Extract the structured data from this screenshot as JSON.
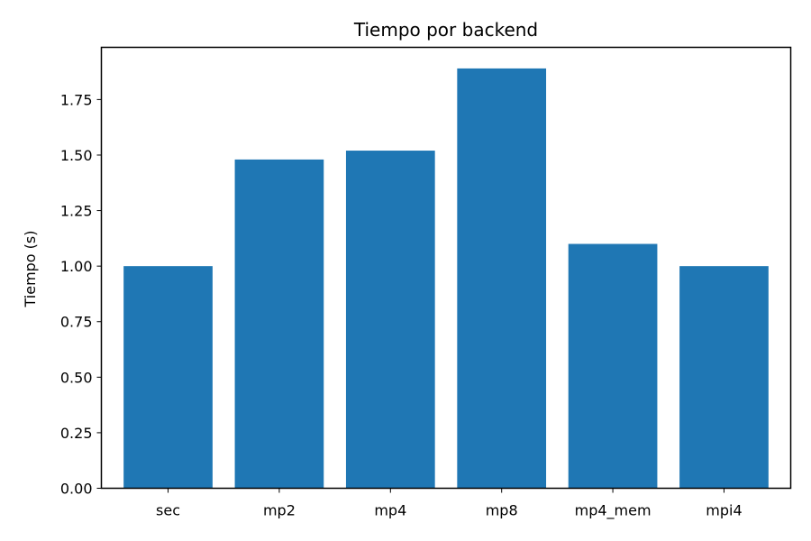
{
  "chart_data": {
    "type": "bar",
    "title": "Tiempo por backend",
    "xlabel": "",
    "ylabel": "Tiempo (s)",
    "categories": [
      "sec",
      "mp2",
      "mp4",
      "mp8",
      "mp4_mem",
      "mpi4"
    ],
    "values": [
      1.0,
      1.48,
      1.52,
      1.89,
      1.1,
      1.0
    ],
    "ylim": [
      0,
      1.985
    ],
    "yticks": [
      0.0,
      0.25,
      0.5,
      0.75,
      1.0,
      1.25,
      1.5,
      1.75
    ],
    "ytick_labels": [
      "0.00",
      "0.25",
      "0.50",
      "0.75",
      "1.00",
      "1.25",
      "1.50",
      "1.75"
    ],
    "bar_color": "#1f77b4",
    "grid": false,
    "legend": "none"
  }
}
